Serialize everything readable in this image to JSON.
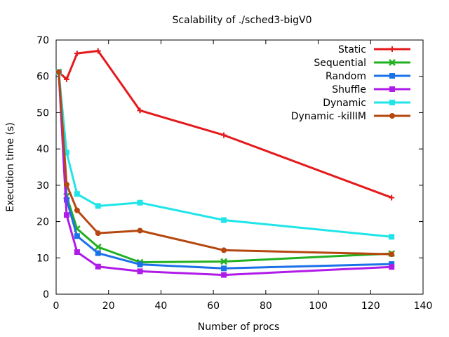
{
  "chart_data": {
    "type": "line",
    "title": "Scalability of ./sched3-bigV0",
    "xlabel": "Number of procs",
    "ylabel": "Execution time (s)",
    "xlim": [
      0,
      140
    ],
    "ylim": [
      0,
      70
    ],
    "x_ticks": [
      0,
      20,
      40,
      60,
      80,
      100,
      120,
      140
    ],
    "y_ticks": [
      0,
      10,
      20,
      30,
      40,
      50,
      60,
      70
    ],
    "grid": false,
    "legend_position": "top-right",
    "x": [
      1,
      4,
      8,
      16,
      32,
      64,
      128
    ],
    "series": [
      {
        "name": "Static",
        "color": "#e41a1c",
        "marker": "plus",
        "values": [
          61.2,
          59.2,
          66.3,
          67.0,
          50.6,
          43.8,
          26.6
        ]
      },
      {
        "name": "Sequential",
        "color": "#21b021",
        "marker": "cross",
        "values": [
          61.2,
          27.0,
          18.0,
          13.0,
          8.8,
          9.0,
          11.2
        ]
      },
      {
        "name": "Random",
        "color": "#1b72e8",
        "marker": "square",
        "values": [
          61.2,
          26.0,
          16.0,
          11.3,
          8.2,
          7.1,
          8.3
        ]
      },
      {
        "name": "Shuffle",
        "color": "#b01be8",
        "marker": "square",
        "values": [
          61.2,
          21.8,
          11.6,
          7.6,
          6.3,
          5.3,
          7.5
        ]
      },
      {
        "name": "Dynamic",
        "color": "#1fe5e8",
        "marker": "square",
        "values": [
          61.2,
          39.0,
          27.6,
          24.3,
          25.2,
          20.4,
          15.8
        ]
      },
      {
        "name": "Dynamic -killIM",
        "color": "#b5470f",
        "marker": "circle",
        "values": [
          61.2,
          30.2,
          23.1,
          16.8,
          17.5,
          12.1,
          11.0
        ]
      }
    ]
  }
}
